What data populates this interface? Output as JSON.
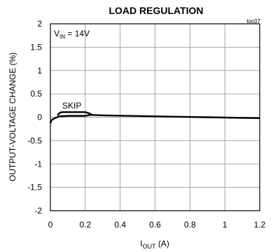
{
  "chart_data": {
    "type": "line",
    "title": "LOAD REGULATION",
    "tag": "toc07",
    "ylabel": "OUTPUT-VOLTAGE CHANGE (%)",
    "xlabel": {
      "main": "I",
      "sub": "OUT",
      "unit": " (A)"
    },
    "xlim": [
      0,
      1.2
    ],
    "ylim": [
      -2,
      2
    ],
    "xticks": [
      0,
      0.2,
      0.4,
      0.6,
      0.8,
      1,
      1.2
    ],
    "xtick_labels": [
      "0",
      "0.2",
      "0.4",
      "0.6",
      "0.8",
      "1",
      "1.2"
    ],
    "yticks": [
      2,
      1.5,
      1,
      0.5,
      0,
      -0.5,
      -1,
      -1.5,
      -2
    ],
    "ytick_labels": [
      "2",
      "1.5",
      "1",
      "0.5",
      "0",
      "-0.5",
      "-1",
      "-1.5",
      "-2"
    ],
    "grid": true,
    "annotations": {
      "vin": {
        "main": "V",
        "sub": "IN",
        "rest": " = 14V"
      },
      "skip": "SKIP"
    },
    "series": [
      {
        "x": [
          0.0,
          0.005,
          0.015,
          0.03,
          0.04,
          0.05,
          0.1,
          0.2,
          0.23,
          0.3,
          0.6,
          0.9,
          1.2
        ],
        "y": [
          -0.13,
          -0.07,
          -0.04,
          -0.01,
          0.0,
          0.02,
          0.03,
          0.03,
          0.05,
          0.04,
          0.02,
          0.0,
          -0.02
        ]
      },
      {
        "x": [
          0.04,
          0.055,
          0.07,
          0.2,
          0.225,
          0.24
        ],
        "y": [
          0.04,
          0.1,
          0.11,
          0.11,
          0.08,
          0.05
        ]
      }
    ]
  }
}
